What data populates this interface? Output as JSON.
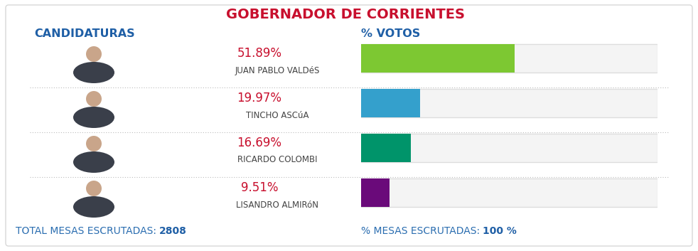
{
  "chart_data": {
    "type": "bar",
    "orientation": "horizontal",
    "title": "GOBERNADOR DE CORRIENTES",
    "annotations": [
      "CANDIDATURAS",
      "% VOTOS"
    ],
    "categories": [
      "JUAN PABLO VALDéS",
      "TINCHO ASCúA",
      "RICARDO COLOMBI",
      "LISANDRO ALMIRóN"
    ],
    "values": [
      51.89,
      19.97,
      16.69,
      9.51
    ],
    "value_labels": [
      "51.89%",
      "19.97%",
      "16.69%",
      "9.51%"
    ],
    "colors": [
      "#7dc832",
      "#34a0cc",
      "#00946a",
      "#6a0a7a"
    ],
    "xlim": [
      0,
      100
    ],
    "data_labels": true,
    "tick_labels": false,
    "footer": [
      {
        "label": "TOTAL MESAS ESCRUTADAS:",
        "value": 2808
      },
      {
        "label": "% MESAS ESCRUTADAS:",
        "value": 100,
        "value_label": "100 %"
      }
    ]
  }
}
